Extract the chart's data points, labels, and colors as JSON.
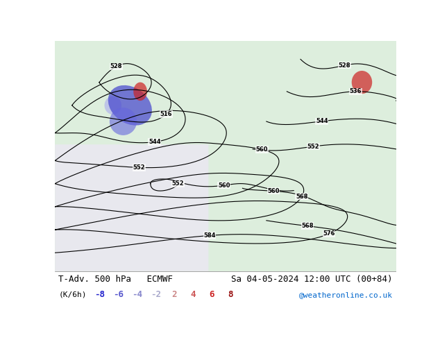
{
  "title_left": "T-Adv. 500 hPa   ECMWF",
  "title_right": "Sa 04-05-2024 12:00 UTC (00+84)",
  "unit_label": "(K/6h)",
  "legend_values": [
    "-8",
    "-6",
    "-4",
    "-2",
    "2",
    "4",
    "6",
    "8"
  ],
  "legend_colors_neg": [
    "#3333ff",
    "#6666ff",
    "#9999ff",
    "#cc99ff"
  ],
  "legend_colors_pos": [
    "#ff9999",
    "#ff6666",
    "#ff3333",
    "#cc0000"
  ],
  "credit": "@weatheronline.co.uk",
  "credit_color": "#0066cc",
  "bg_color": "#ffffff",
  "map_bg": "#e8f4e8",
  "bottom_bar_height": 0.12,
  "fig_width": 6.34,
  "fig_height": 4.9,
  "dpi": 100
}
